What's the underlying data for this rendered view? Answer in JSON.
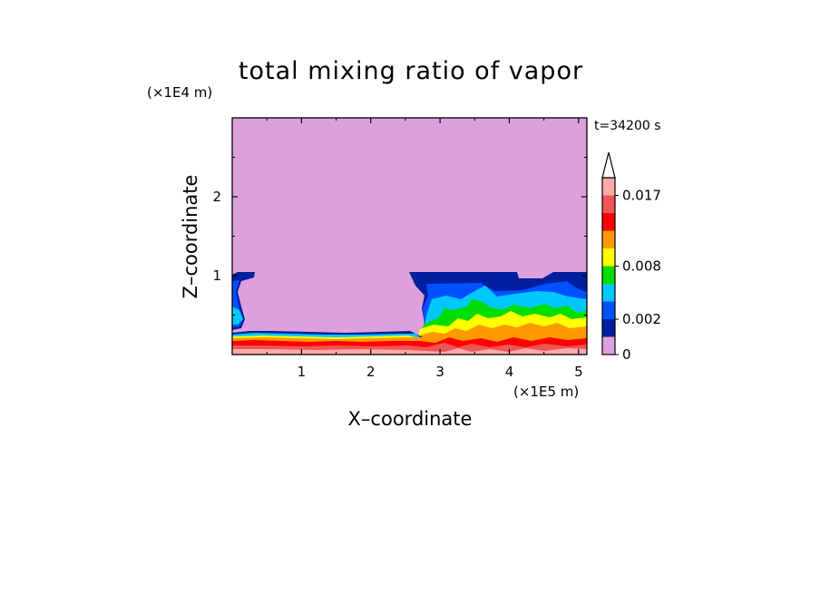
{
  "chart_data": {
    "type": "heatmap",
    "title": "total mixing ratio of vapor",
    "xlabel": "X–coordinate",
    "ylabel": "Z–coordinate",
    "x_unit": "(×1E5 m)",
    "y_unit": "(×1E4 m)",
    "time_label": "t=34200 s",
    "xlim": [
      0,
      5.12
    ],
    "ylim": [
      0,
      3.0
    ],
    "x_ticks": [
      1,
      2,
      3,
      4,
      5
    ],
    "y_ticks": [
      1,
      2
    ],
    "colorbar": {
      "levels": [
        0,
        0.001,
        0.002,
        0.004,
        0.006,
        0.008,
        0.01,
        0.012,
        0.014,
        0.017,
        0.02
      ],
      "colors": [
        "#dda0dd",
        "#001f9f",
        "#0050ff",
        "#00c8ff",
        "#00dd00",
        "#ffff00",
        "#ff9900",
        "#ff0000",
        "#ee5555",
        "#ffaaaa"
      ],
      "tick_labels": [
        "0",
        "0.002",
        "0.008",
        "0.017"
      ],
      "tick_values": [
        0,
        0.002,
        0.008,
        0.017
      ],
      "extend": "max"
    },
    "grid": false
  }
}
